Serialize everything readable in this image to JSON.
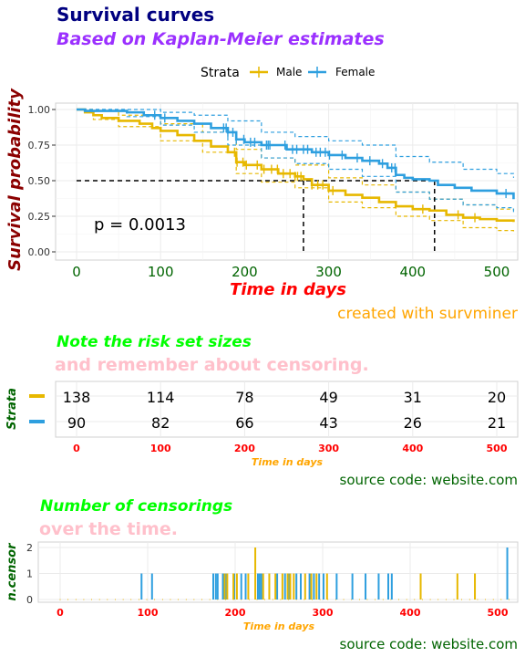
{
  "title": "Survival curves",
  "subtitle": "Based on Kaplan-Meier estimates",
  "caption": "created with survminer",
  "legend_title": "Strata",
  "pvalue_label": "p = 0.0013",
  "colors": {
    "male": "#E7B800",
    "female": "#2E9FDF",
    "title": "#000080",
    "subtitle": "#9B30FF",
    "ylab": "#8B0000",
    "xlab": "#FF0000",
    "ticks": "#006400",
    "caption": "#FFA500",
    "note": "#00FF00",
    "note_faded": "#FFC0CB",
    "source": "#006400"
  },
  "chart_data": [
    {
      "type": "line",
      "name": "survival",
      "xlabel": "Time in days",
      "ylabel": "Survival probability",
      "xlim": [
        0,
        520
      ],
      "ylim": [
        0,
        1
      ],
      "xticks": [
        0,
        100,
        200,
        300,
        400,
        500
      ],
      "yticks": [
        "0.00",
        "0.25",
        "0.50",
        "0.75",
        "1.00"
      ],
      "grid": true,
      "legend_position": "top",
      "median_line": {
        "y": 0.5,
        "x": [
          270,
          426
        ]
      },
      "series": [
        {
          "name": "Male",
          "color": "#E7B800",
          "points": [
            [
              0,
              1.0
            ],
            [
              10,
              0.98
            ],
            [
              20,
              0.96
            ],
            [
              30,
              0.94
            ],
            [
              50,
              0.92
            ],
            [
              75,
              0.9
            ],
            [
              90,
              0.87
            ],
            [
              100,
              0.85
            ],
            [
              120,
              0.82
            ],
            [
              140,
              0.78
            ],
            [
              160,
              0.74
            ],
            [
              180,
              0.7
            ],
            [
              190,
              0.63
            ],
            [
              200,
              0.61
            ],
            [
              220,
              0.58
            ],
            [
              240,
              0.55
            ],
            [
              260,
              0.53
            ],
            [
              270,
              0.51
            ],
            [
              280,
              0.47
            ],
            [
              300,
              0.43
            ],
            [
              320,
              0.4
            ],
            [
              340,
              0.38
            ],
            [
              360,
              0.35
            ],
            [
              380,
              0.32
            ],
            [
              400,
              0.3
            ],
            [
              420,
              0.29
            ],
            [
              440,
              0.26
            ],
            [
              460,
              0.24
            ],
            [
              480,
              0.23
            ],
            [
              500,
              0.22
            ],
            [
              520,
              0.21
            ]
          ],
          "upper": [
            [
              0,
              1.0
            ],
            [
              20,
              0.99
            ],
            [
              50,
              0.96
            ],
            [
              100,
              0.9
            ],
            [
              150,
              0.84
            ],
            [
              190,
              0.72
            ],
            [
              220,
              0.66
            ],
            [
              260,
              0.61
            ],
            [
              300,
              0.52
            ],
            [
              340,
              0.47
            ],
            [
              380,
              0.42
            ],
            [
              420,
              0.37
            ],
            [
              460,
              0.33
            ],
            [
              500,
              0.3
            ],
            [
              520,
              0.29
            ]
          ],
          "lower": [
            [
              0,
              1.0
            ],
            [
              20,
              0.93
            ],
            [
              50,
              0.88
            ],
            [
              100,
              0.78
            ],
            [
              150,
              0.7
            ],
            [
              190,
              0.55
            ],
            [
              220,
              0.49
            ],
            [
              260,
              0.45
            ],
            [
              300,
              0.35
            ],
            [
              340,
              0.31
            ],
            [
              380,
              0.25
            ],
            [
              420,
              0.22
            ],
            [
              460,
              0.17
            ],
            [
              500,
              0.15
            ],
            [
              520,
              0.14
            ]
          ]
        },
        {
          "name": "Female",
          "color": "#2E9FDF",
          "points": [
            [
              0,
              1.0
            ],
            [
              10,
              0.99
            ],
            [
              60,
              0.98
            ],
            [
              80,
              0.96
            ],
            [
              100,
              0.94
            ],
            [
              120,
              0.92
            ],
            [
              140,
              0.9
            ],
            [
              160,
              0.87
            ],
            [
              180,
              0.84
            ],
            [
              190,
              0.79
            ],
            [
              200,
              0.77
            ],
            [
              220,
              0.75
            ],
            [
              250,
              0.72
            ],
            [
              280,
              0.7
            ],
            [
              300,
              0.68
            ],
            [
              320,
              0.66
            ],
            [
              340,
              0.64
            ],
            [
              360,
              0.62
            ],
            [
              370,
              0.59
            ],
            [
              380,
              0.54
            ],
            [
              390,
              0.52
            ],
            [
              400,
              0.51
            ],
            [
              420,
              0.5
            ],
            [
              430,
              0.47
            ],
            [
              450,
              0.45
            ],
            [
              470,
              0.43
            ],
            [
              500,
              0.41
            ],
            [
              510,
              0.41
            ],
            [
              520,
              0.37
            ]
          ],
          "upper": [
            [
              0,
              1.0
            ],
            [
              60,
              1.0
            ],
            [
              100,
              0.98
            ],
            [
              140,
              0.96
            ],
            [
              180,
              0.92
            ],
            [
              220,
              0.84
            ],
            [
              260,
              0.81
            ],
            [
              300,
              0.78
            ],
            [
              340,
              0.75
            ],
            [
              380,
              0.67
            ],
            [
              420,
              0.63
            ],
            [
              460,
              0.58
            ],
            [
              500,
              0.55
            ],
            [
              520,
              0.52
            ]
          ],
          "lower": [
            [
              0,
              1.0
            ],
            [
              60,
              0.95
            ],
            [
              100,
              0.89
            ],
            [
              140,
              0.84
            ],
            [
              180,
              0.75
            ],
            [
              220,
              0.66
            ],
            [
              260,
              0.62
            ],
            [
              300,
              0.58
            ],
            [
              340,
              0.53
            ],
            [
              380,
              0.42
            ],
            [
              420,
              0.37
            ],
            [
              460,
              0.33
            ],
            [
              500,
              0.31
            ],
            [
              520,
              0.28
            ]
          ]
        }
      ]
    },
    {
      "type": "table",
      "name": "risk-table",
      "title": "Note the risk set sizes",
      "subtitle": "and remember about censoring.",
      "ylabel": "Strata",
      "xlabel": "Time in days",
      "xticks": [
        "0",
        "100",
        "200",
        "300",
        "400",
        "500"
      ],
      "rows": [
        {
          "name": "Male",
          "values": [
            138,
            114,
            78,
            49,
            31,
            20
          ]
        },
        {
          "name": "Female",
          "values": [
            90,
            82,
            66,
            43,
            26,
            21
          ]
        }
      ],
      "source": "source code: website.com"
    },
    {
      "type": "bar",
      "name": "ncensor",
      "title": "Number of censorings",
      "subtitle": "over the time.",
      "ylabel": "n.censor",
      "xlabel": "Time in days",
      "xlim": [
        0,
        520
      ],
      "ylim": [
        0,
        2
      ],
      "xticks": [
        "0",
        "100",
        "200",
        "300",
        "400",
        "500"
      ],
      "yticks": [
        "0",
        "1",
        "2"
      ],
      "series": [
        {
          "name": "Female",
          "x": [
            93,
            105,
            175,
            178,
            180,
            186,
            190,
            199,
            207,
            212,
            226,
            228,
            230,
            248,
            257,
            262,
            270,
            275,
            285,
            290,
            296,
            301,
            316,
            334,
            349,
            364,
            375,
            379,
            511
          ],
          "values": [
            1,
            1,
            1,
            1,
            1,
            1,
            1,
            1,
            1,
            1,
            1,
            1,
            1,
            1,
            1,
            1,
            1,
            1,
            1,
            1,
            1,
            1,
            1,
            1,
            1,
            1,
            1,
            1,
            2
          ]
        },
        {
          "name": "Male",
          "x": [
            188,
            191,
            198,
            202,
            215,
            223,
            232,
            239,
            246,
            254,
            260,
            263,
            267,
            280,
            287,
            293,
            305,
            412,
            454,
            474
          ],
          "values": [
            1,
            1,
            1,
            1,
            1,
            2,
            1,
            1,
            1,
            1,
            1,
            1,
            1,
            1,
            1,
            1,
            1,
            1,
            1,
            1
          ]
        }
      ],
      "source": "source code: website.com"
    }
  ]
}
